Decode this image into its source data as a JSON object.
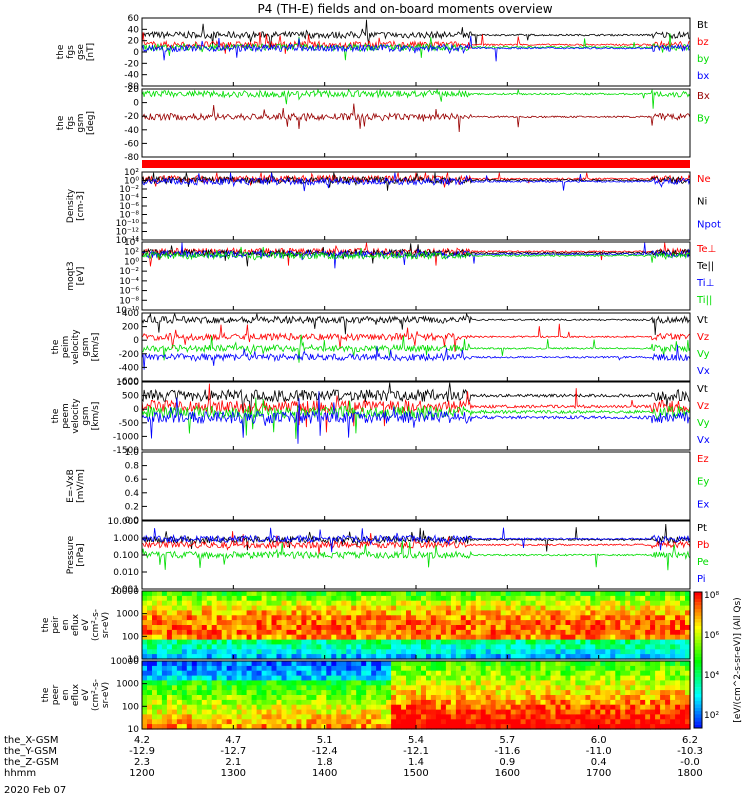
{
  "title": "P4 (TH-E) fields and on-board moments overview",
  "date_label": "2020 Feb 07",
  "colors": {
    "black": "#000000",
    "red": "#ff0000",
    "green": "#00dd00",
    "blue": "#0000ff",
    "darkred": "#990000"
  },
  "chart_data": [
    {
      "type": "line",
      "ylabel": [
        "the",
        "fgs",
        "gse",
        "[nT]"
      ],
      "ylim": [
        -80,
        60
      ],
      "yticks": [
        "60",
        "40",
        "20",
        "0",
        "-20",
        "-40",
        "-80"
      ],
      "series": [
        {
          "name": "Bt",
          "color": "#000000",
          "level": 25
        },
        {
          "name": "bz",
          "color": "#ff0000",
          "level": 5
        },
        {
          "name": "by",
          "color": "#00dd00",
          "level": 0
        },
        {
          "name": "bx",
          "color": "#0000ff",
          "level": -2
        }
      ]
    },
    {
      "type": "line",
      "ylabel": [
        "the",
        "fgs",
        "gsm",
        "[deg]"
      ],
      "ylim": [
        -90,
        20
      ],
      "yticks": [
        "20",
        "0",
        "-20",
        "-40",
        "-60",
        "-80"
      ],
      "series": [
        {
          "name": "Bx",
          "color": "#990000",
          "level": -25
        },
        {
          "name": "By",
          "color": "#00dd00",
          "level": 12
        }
      ]
    },
    {
      "type": "line",
      "ylabel": [
        "Density",
        "[cm-3]"
      ],
      "ylim": [
        "1e-16",
        "1e2"
      ],
      "yticks": [
        "10²",
        "10⁰",
        "10⁻²",
        "10⁻⁴",
        "10⁻⁶",
        "10⁻⁸",
        "10⁻¹⁰",
        "10⁻¹²",
        "10⁻¹⁴"
      ],
      "series": [
        {
          "name": "Ne",
          "color": "#ff0000"
        },
        {
          "name": "Ni",
          "color": "#000000"
        },
        {
          "name": "Npot",
          "color": "#0000ff"
        }
      ]
    },
    {
      "type": "line",
      "ylabel": [
        "moqt3",
        "[eV]"
      ],
      "ylim": [
        "1e-10",
        "1e4"
      ],
      "yticks": [
        "10⁴",
        "10²",
        "10⁰",
        "10⁻²",
        "10⁻⁴",
        "10⁻⁶",
        "10⁻⁸",
        "10⁻¹⁰"
      ],
      "series": [
        {
          "name": "Te⊥",
          "color": "#ff0000"
        },
        {
          "name": "Te||",
          "color": "#000000"
        },
        {
          "name": "Ti⊥",
          "color": "#0000ff"
        },
        {
          "name": "Ti||",
          "color": "#00dd00"
        }
      ]
    },
    {
      "type": "line",
      "ylabel": [
        "the",
        "peim",
        "velocity",
        "gsm",
        "[km/s]"
      ],
      "ylim": [
        -600,
        400
      ],
      "yticks": [
        "400",
        "200",
        "0",
        "-200",
        "-400",
        "-600"
      ],
      "series": [
        {
          "name": "Vt",
          "color": "#000000",
          "level": 300
        },
        {
          "name": "Vz",
          "color": "#ff0000",
          "level": 50
        },
        {
          "name": "Vy",
          "color": "#00dd00",
          "level": -120
        },
        {
          "name": "Vx",
          "color": "#0000ff",
          "level": -250
        }
      ]
    },
    {
      "type": "line",
      "ylabel": [
        "the",
        "peem",
        "velocity",
        "gsm",
        "[km/s]"
      ],
      "ylim": [
        -1500,
        1000
      ],
      "yticks": [
        "1000",
        "500",
        "0",
        "-500",
        "-1000",
        "-1500"
      ],
      "series": [
        {
          "name": "Vt",
          "color": "#000000",
          "level": 500
        },
        {
          "name": "Vz",
          "color": "#ff0000",
          "level": 100
        },
        {
          "name": "Vy",
          "color": "#00dd00",
          "level": -100
        },
        {
          "name": "Vx",
          "color": "#0000ff",
          "level": -300
        }
      ]
    },
    {
      "type": "line",
      "ylabel": [
        "E=-VxB",
        "[mV/m]"
      ],
      "ylim": [
        0,
        1.0
      ],
      "yticks": [
        "1.0",
        "0.8",
        "0.6",
        "0.4",
        "0.2",
        "0.0"
      ],
      "series": [
        {
          "name": "Ez",
          "color": "#ff0000"
        },
        {
          "name": "Ey",
          "color": "#00dd00"
        },
        {
          "name": "Ex",
          "color": "#0000ff"
        }
      ]
    },
    {
      "type": "line",
      "ylabel": [
        "Pressure",
        "[nPa]"
      ],
      "ylim": [
        0.001,
        10
      ],
      "yticks": [
        "10.000",
        "1.000",
        "0.100",
        "0.010",
        "0.001"
      ],
      "series": [
        {
          "name": "Pt",
          "color": "#000000",
          "level": 0.8
        },
        {
          "name": "Pb",
          "color": "#ff0000",
          "level": 0.4
        },
        {
          "name": "Pe",
          "color": "#00dd00",
          "level": 0.1
        },
        {
          "name": "Pi",
          "color": "#0000ff",
          "level": 0.9
        }
      ]
    },
    {
      "type": "heatmap",
      "ylabel": [
        "the",
        "peir",
        "en",
        "eflux",
        "eV",
        "(cm²-s-",
        "sr-eV)"
      ],
      "yticks": [
        "10000",
        "1000",
        "100",
        "10"
      ]
    },
    {
      "type": "heatmap",
      "ylabel": [
        "the",
        "peer",
        "en",
        "eflux",
        "eV",
        "(cm²-s-",
        "sr-eV)"
      ],
      "yticks": [
        "10000",
        "1000",
        "100",
        "10"
      ]
    }
  ],
  "colorbar": {
    "label": "[eV/(cm^2-s-sr-eV)] (All Qs)",
    "ticks": [
      "10⁸",
      "10⁶",
      "10⁴",
      "10²"
    ]
  },
  "axis": {
    "rows": [
      {
        "name": "the_X-GSM",
        "values": [
          "4.2",
          "4.7",
          "5.1",
          "5.4",
          "5.7",
          "6.0",
          "6.2"
        ]
      },
      {
        "name": "the_Y-GSM",
        "values": [
          "-12.9",
          "-12.7",
          "-12.4",
          "-12.1",
          "-11.6",
          "-11.0",
          "-10.3"
        ]
      },
      {
        "name": "the_Z-GSM",
        "values": [
          "2.3",
          "2.1",
          "1.8",
          "1.4",
          "0.9",
          "0.4",
          "-0.0"
        ]
      },
      {
        "name": "hhmm",
        "values": [
          "1200",
          "1300",
          "1400",
          "1500",
          "1600",
          "1700",
          "1800"
        ]
      }
    ]
  }
}
